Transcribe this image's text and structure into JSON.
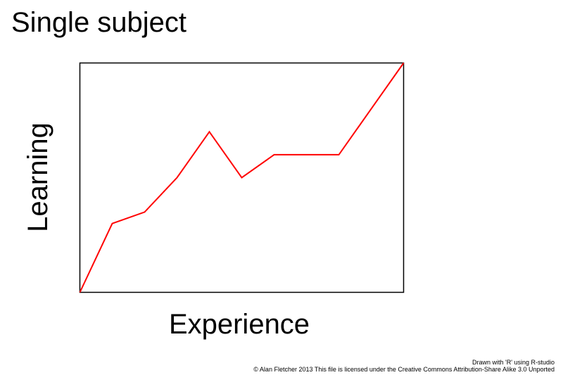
{
  "chart_data": {
    "type": "line",
    "title": "Single subject",
    "xlabel": "Experience",
    "ylabel": "Learning",
    "x": [
      0,
      1,
      2,
      3,
      4,
      5,
      6,
      7,
      8,
      9,
      10
    ],
    "series": [
      {
        "color": "#ff0000",
        "values": [
          0,
          3,
          3.5,
          5,
          7,
          5,
          6,
          6,
          6,
          8,
          10
        ]
      }
    ],
    "xlim": [
      0,
      10
    ],
    "ylim": [
      0,
      10
    ],
    "axis_ticks": false,
    "grid": false,
    "box": true
  },
  "credits": {
    "line1": "Drawn with 'R' using R-studio",
    "line2": "© Alan Fletcher 2013 This file is licensed under the Creative Commons Attribution-Share Alike 3.0 Unported"
  }
}
